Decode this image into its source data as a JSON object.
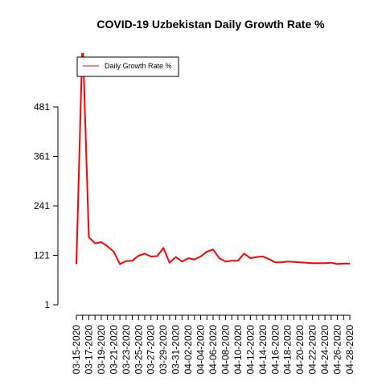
{
  "chart_data": {
    "type": "line",
    "title": "COVID-19 Uzbekistan Daily Growth Rate %",
    "xlabel": "",
    "ylabel": "",
    "ylim": [
      1,
      481
    ],
    "y_ticks": [
      "1",
      "121",
      "241",
      "361",
      "481"
    ],
    "x_tick_labels": [
      "03-15-2020",
      "03-17-2020",
      "03-19-2020",
      "03-21-2020",
      "03-23-2020",
      "03-25-2020",
      "03-27-2020",
      "03-29-2020",
      "03-31-2020",
      "04-02-2020",
      "04-04-2020",
      "04-06-2020",
      "04-08-2020",
      "04-10-2020",
      "04-12-2020",
      "04-14-2020",
      "04-16-2020",
      "04-18-2020",
      "04-20-2020",
      "04-22-2020",
      "04-24-2020",
      "04-26-2020",
      "04-28-2020"
    ],
    "grid": false,
    "legend_position": "top-left",
    "series_color": "#ff0000",
    "x": [
      "03-15-2020",
      "03-16-2020",
      "03-17-2020",
      "03-18-2020",
      "03-19-2020",
      "03-20-2020",
      "03-21-2020",
      "03-22-2020",
      "03-23-2020",
      "03-24-2020",
      "03-25-2020",
      "03-26-2020",
      "03-27-2020",
      "03-28-2020",
      "03-29-2020",
      "03-30-2020",
      "03-31-2020",
      "04-01-2020",
      "04-02-2020",
      "04-03-2020",
      "04-04-2020",
      "04-05-2020",
      "04-06-2020",
      "04-07-2020",
      "04-08-2020",
      "04-09-2020",
      "04-10-2020",
      "04-11-2020",
      "04-12-2020",
      "04-13-2020",
      "04-14-2020",
      "04-15-2020",
      "04-16-2020",
      "04-17-2020",
      "04-18-2020",
      "04-19-2020",
      "04-20-2020",
      "04-21-2020",
      "04-22-2020",
      "04-23-2020",
      "04-24-2020",
      "04-25-2020",
      "04-26-2020",
      "04-27-2020",
      "04-28-2020"
    ],
    "series": [
      {
        "name": "Daily Growth Rate %",
        "values": [
          100,
          650,
          165,
          150,
          153,
          143,
          130,
          100,
          107,
          108,
          120,
          125,
          118,
          119,
          139,
          103,
          117,
          106,
          114,
          111,
          118,
          130,
          135,
          114,
          106,
          108,
          108,
          125,
          114,
          117,
          118,
          112,
          104,
          104,
          106,
          105,
          104,
          103,
          102,
          102,
          102,
          103,
          100,
          101,
          101
        ]
      }
    ]
  }
}
